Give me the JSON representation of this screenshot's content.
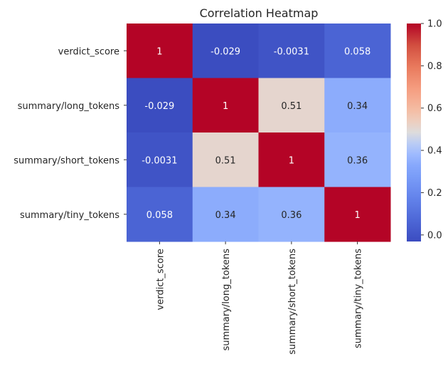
{
  "chart_data": {
    "type": "heatmap",
    "title": "Correlation Heatmap",
    "xlabel": "",
    "ylabel": "",
    "rows": [
      "verdict_score",
      "summary/long_tokens",
      "summary/short_tokens",
      "summary/tiny_tokens"
    ],
    "columns": [
      "verdict_score",
      "summary/long_tokens",
      "summary/short_tokens",
      "summary/tiny_tokens"
    ],
    "values": [
      [
        1,
        -0.029,
        -0.0031,
        0.058
      ],
      [
        -0.029,
        1,
        0.51,
        0.34
      ],
      [
        -0.0031,
        0.51,
        1,
        0.36
      ],
      [
        0.058,
        0.34,
        0.36,
        1
      ]
    ],
    "annotations": [
      [
        "1",
        "-0.029",
        "-0.0031",
        "0.058"
      ],
      [
        "-0.029",
        "1",
        "0.51",
        "0.34"
      ],
      [
        "-0.0031",
        "0.51",
        "1",
        "0.36"
      ],
      [
        "0.058",
        "0.34",
        "0.36",
        "1"
      ]
    ],
    "colormap": "coolwarm",
    "vmin": -0.031,
    "vmax": 1.0,
    "colorbar": {
      "ticks": [
        0.0,
        0.2,
        0.4,
        0.6,
        0.8,
        1.0
      ],
      "tick_labels": [
        "0.0",
        "0.2",
        "0.4",
        "0.6",
        "0.8",
        "1.0"
      ]
    },
    "grid": false
  }
}
